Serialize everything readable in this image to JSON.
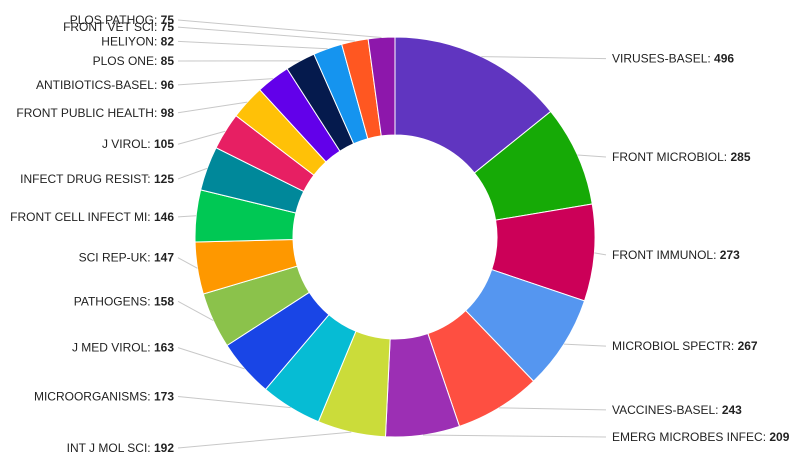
{
  "chart_data": {
    "type": "pie",
    "variant": "donut",
    "slices": [
      {
        "label": "VIRUSES-BASEL",
        "value": 496,
        "color": "#6035c0"
      },
      {
        "label": "FRONT MICROBIOL",
        "value": 285,
        "color": "#16aa06"
      },
      {
        "label": "FRONT IMMUNOL",
        "value": 273,
        "color": "#cc0058"
      },
      {
        "label": "MICROBIOL SPECTR",
        "value": 267,
        "color": "#5596f0"
      },
      {
        "label": "VACCINES-BASEL",
        "value": 243,
        "color": "#fe4f41"
      },
      {
        "label": "EMERG MICROBES INFEC",
        "value": 209,
        "color": "#9c2fb4"
      },
      {
        "label": "INT J MOL SCI",
        "value": 192,
        "color": "#cbdc3a"
      },
      {
        "label": "MICROORGANISMS",
        "value": 173,
        "color": "#06bcd4"
      },
      {
        "label": "J MED VIROL",
        "value": 163,
        "color": "#1945e6"
      },
      {
        "label": "PATHOGENS",
        "value": 158,
        "color": "#8bc24b"
      },
      {
        "label": "SCI REP-UK",
        "value": 147,
        "color": "#fe9800"
      },
      {
        "label": "FRONT CELL INFECT MI",
        "value": 146,
        "color": "#00c854"
      },
      {
        "label": "INFECT DRUG RESIST",
        "value": 125,
        "color": "#00889a"
      },
      {
        "label": "J VIROL",
        "value": 105,
        "color": "#e71f63"
      },
      {
        "label": "FRONT PUBLIC HEALTH",
        "value": 98,
        "color": "#ffc107"
      },
      {
        "label": "ANTIBIOTICS-BASEL",
        "value": 96,
        "color": "#6200ea"
      },
      {
        "label": "PLOS ONE",
        "value": 85,
        "color": "#051a4d"
      },
      {
        "label": "HELIYON",
        "value": 82,
        "color": "#1594ef"
      },
      {
        "label": "FRONT VET SCI",
        "value": 75,
        "color": "#ff5721"
      },
      {
        "label": "PLOS PATHOG",
        "value": 75,
        "color": "#8d17ab"
      }
    ]
  }
}
